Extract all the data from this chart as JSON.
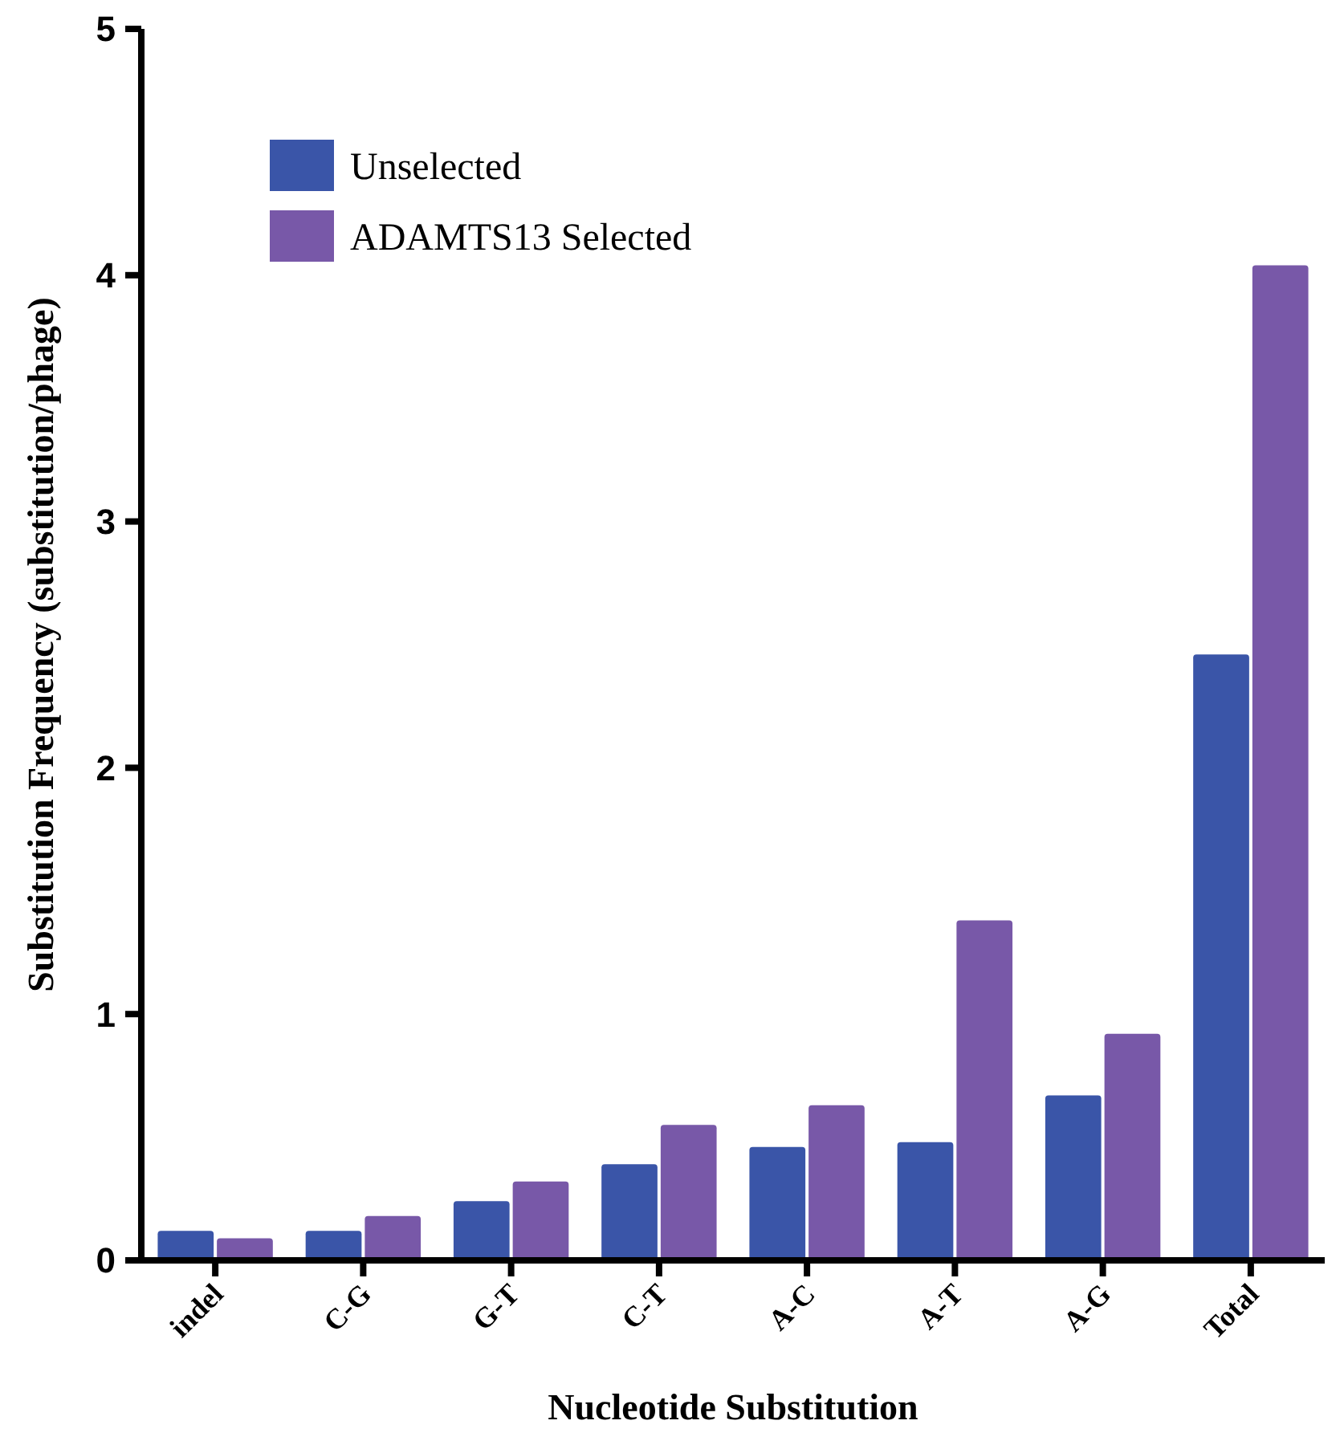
{
  "chart_data": {
    "type": "bar",
    "xlabel": "Nucleotide Substitution",
    "ylabel": "Substitution Frequency (substitution/phage)",
    "categories": [
      "indel",
      "C-G",
      "G-T",
      "C-T",
      "A-C",
      "A-T",
      "A-G",
      "Total"
    ],
    "series": [
      {
        "name": "Unselected",
        "color": "#3a55a8",
        "values": [
          0.12,
          0.12,
          0.24,
          0.39,
          0.46,
          0.48,
          0.67,
          2.46
        ]
      },
      {
        "name": "ADAMTS13 Selected",
        "color": "#7858a8",
        "values": [
          0.09,
          0.18,
          0.32,
          0.55,
          0.63,
          1.38,
          0.92,
          4.04
        ]
      }
    ],
    "ylim": [
      0,
      5
    ],
    "yticks": [
      0,
      1,
      2,
      3,
      4,
      5
    ],
    "grid": false,
    "legend": "top left"
  }
}
